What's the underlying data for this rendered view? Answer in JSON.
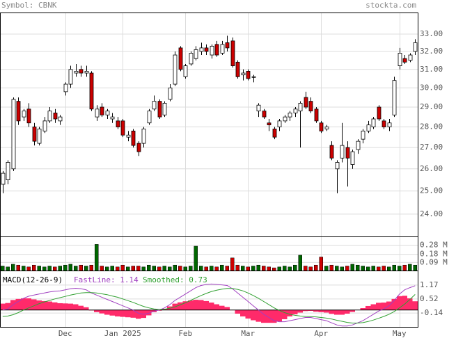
{
  "chart_data": [
    {
      "type": "candlestick",
      "title": "Symbol: CBNK",
      "source": "stockta.com",
      "categories": [
        null,
        null,
        null,
        null,
        null,
        null,
        null,
        null,
        null,
        null,
        null,
        null,
        "Dec",
        null,
        null,
        null,
        null,
        null,
        null,
        null,
        null,
        null,
        null,
        "Jan 2025",
        null,
        null,
        null,
        null,
        null,
        null,
        null,
        null,
        null,
        null,
        null,
        "Feb",
        null,
        null,
        null,
        null,
        null,
        null,
        null,
        null,
        null,
        null,
        null,
        "Mar",
        null,
        null,
        null,
        null,
        null,
        null,
        null,
        null,
        null,
        null,
        null,
        null,
        null,
        "Apr",
        null,
        null,
        null,
        null,
        null,
        null,
        null,
        null,
        null,
        null,
        null,
        null,
        null,
        null,
        "May",
        null,
        null,
        null
      ],
      "ohlc": [
        [
          25.3,
          25.9,
          24.9,
          25.8
        ],
        [
          25.5,
          26.4,
          25.3,
          26.3
        ],
        [
          26.0,
          29.5,
          25.9,
          29.4
        ],
        [
          29.3,
          29.5,
          28.1,
          28.3
        ],
        [
          28.5,
          28.9,
          28.3,
          28.8
        ],
        [
          28.9,
          29.2,
          28.0,
          28.2
        ],
        [
          28.0,
          28.2,
          27.1,
          27.3
        ],
        [
          27.2,
          28.0,
          27.1,
          27.9
        ],
        [
          27.8,
          28.5,
          27.7,
          28.3
        ],
        [
          28.3,
          29.0,
          28.2,
          28.8
        ],
        [
          28.7,
          28.9,
          28.2,
          28.4
        ],
        [
          28.3,
          28.6,
          28.1,
          28.5
        ],
        [
          29.8,
          30.3,
          29.6,
          30.2
        ],
        [
          30.2,
          31.2,
          30.0,
          31.0
        ],
        [
          30.8,
          31.3,
          30.6,
          30.9
        ],
        [
          31.0,
          31.2,
          30.6,
          30.8
        ],
        [
          30.8,
          31.2,
          30.6,
          30.9
        ],
        [
          30.8,
          30.9,
          28.8,
          28.9
        ],
        [
          28.5,
          29.1,
          28.3,
          28.9
        ],
        [
          29.0,
          29.2,
          28.5,
          28.6
        ],
        [
          28.6,
          28.9,
          28.4,
          28.8
        ],
        [
          28.4,
          28.7,
          28.2,
          28.5
        ],
        [
          28.3,
          28.5,
          27.9,
          28.0
        ],
        [
          28.3,
          28.4,
          27.5,
          27.6
        ],
        [
          27.5,
          27.8,
          27.3,
          27.6
        ],
        [
          27.8,
          27.9,
          27.0,
          27.1
        ],
        [
          27.2,
          27.3,
          26.6,
          26.8
        ],
        [
          27.2,
          28.0,
          27.0,
          27.9
        ],
        [
          28.2,
          28.9,
          28.1,
          28.8
        ],
        [
          28.9,
          29.6,
          28.8,
          29.3
        ],
        [
          29.3,
          29.4,
          28.4,
          28.5
        ],
        [
          28.6,
          29.3,
          28.5,
          29.2
        ],
        [
          29.4,
          30.2,
          29.3,
          30.0
        ],
        [
          30.2,
          32.0,
          30.1,
          31.8
        ],
        [
          32.2,
          32.3,
          30.9,
          31.0
        ],
        [
          30.6,
          31.3,
          30.5,
          31.2
        ],
        [
          31.3,
          32.0,
          31.2,
          31.9
        ],
        [
          31.6,
          32.3,
          31.5,
          32.1
        ],
        [
          32.0,
          32.5,
          31.8,
          32.2
        ],
        [
          32.2,
          32.4,
          31.8,
          32.0
        ],
        [
          31.8,
          32.4,
          31.6,
          32.3
        ],
        [
          32.4,
          32.6,
          31.7,
          31.8
        ],
        [
          31.9,
          32.6,
          31.8,
          32.4
        ],
        [
          32.5,
          32.9,
          32.0,
          32.2
        ],
        [
          32.6,
          32.8,
          31.1,
          31.2
        ],
        [
          31.4,
          31.5,
          30.5,
          30.6
        ],
        [
          30.7,
          31.0,
          30.4,
          30.8
        ],
        [
          30.9,
          31.0,
          30.4,
          30.5
        ],
        [
          30.6,
          30.7,
          30.3,
          30.6
        ],
        [
          28.8,
          29.2,
          28.5,
          29.1
        ],
        [
          28.8,
          28.9,
          28.4,
          28.5
        ],
        [
          28.2,
          28.4,
          27.8,
          28.1
        ],
        [
          27.9,
          28.0,
          27.4,
          27.5
        ],
        [
          28.0,
          28.4,
          27.8,
          28.3
        ],
        [
          28.3,
          28.6,
          28.2,
          28.5
        ],
        [
          28.5,
          28.8,
          28.3,
          28.7
        ],
        [
          28.7,
          29.0,
          28.5,
          28.9
        ],
        [
          28.8,
          29.3,
          27.0,
          29.2
        ],
        [
          29.5,
          29.8,
          28.9,
          29.0
        ],
        [
          29.3,
          29.5,
          28.7,
          28.8
        ],
        [
          28.9,
          29.0,
          28.2,
          28.3
        ],
        [
          28.2,
          28.3,
          27.7,
          27.8
        ],
        [
          27.9,
          28.1,
          27.8,
          28.0
        ],
        [
          27.1,
          27.3,
          26.4,
          26.5
        ],
        [
          26.0,
          26.4,
          24.9,
          26.3
        ],
        [
          26.5,
          28.2,
          26.3,
          27.1
        ],
        [
          27.0,
          27.3,
          25.2,
          26.5
        ],
        [
          26.2,
          26.9,
          26.0,
          26.8
        ],
        [
          26.9,
          27.4,
          26.7,
          27.3
        ],
        [
          27.4,
          27.9,
          27.2,
          27.8
        ],
        [
          27.8,
          28.3,
          27.7,
          28.1
        ],
        [
          28.0,
          28.5,
          27.9,
          28.4
        ],
        [
          29.0,
          29.1,
          28.3,
          28.4
        ],
        [
          28.3,
          28.4,
          27.9,
          28.0
        ],
        [
          28.0,
          28.4,
          27.8,
          28.2
        ],
        [
          28.6,
          30.6,
          28.5,
          30.4
        ],
        [
          31.2,
          32.2,
          31.0,
          31.9
        ],
        [
          31.6,
          31.8,
          31.3,
          31.4
        ],
        [
          31.5,
          31.9,
          31.4,
          31.8
        ],
        [
          32.0,
          32.7,
          31.8,
          32.5
        ]
      ],
      "up_color": "#ffffff",
      "down_color": "#cc0000",
      "log_scale": true,
      "grid": true,
      "ylim": [
        23.07,
        34.28
      ],
      "yticks": [
        {
          "value": 24,
          "label": "24.00"
        },
        {
          "value": 25,
          "label": "25.00"
        },
        {
          "value": 26,
          "label": "26.00"
        },
        {
          "value": 27,
          "label": "27.00"
        },
        {
          "value": 28,
          "label": "28.00"
        },
        {
          "value": 29,
          "label": "29.00"
        },
        {
          "value": 30,
          "label": "30.00"
        },
        {
          "value": 31,
          "label": "31.00"
        },
        {
          "value": 32,
          "label": "32.00"
        },
        {
          "value": 33,
          "label": "33.00"
        }
      ]
    },
    {
      "type": "volume",
      "values": [
        0.05,
        0.04,
        0.07,
        0.06,
        0.05,
        0.04,
        0.06,
        0.05,
        0.04,
        0.05,
        0.04,
        0.05,
        0.06,
        0.07,
        0.05,
        0.06,
        0.05,
        0.06,
        0.29,
        0.05,
        0.04,
        0.05,
        0.04,
        0.06,
        0.04,
        0.05,
        0.05,
        0.04,
        0.06,
        0.05,
        0.04,
        0.05,
        0.04,
        0.06,
        0.05,
        0.04,
        0.05,
        0.27,
        0.05,
        0.04,
        0.05,
        0.04,
        0.06,
        0.05,
        0.14,
        0.06,
        0.05,
        0.04,
        0.05,
        0.06,
        0.05,
        0.04,
        0.03,
        0.04,
        0.05,
        0.04,
        0.06,
        0.17,
        0.05,
        0.04,
        0.06,
        0.15,
        0.05,
        0.06,
        0.05,
        0.04,
        0.05,
        0.07,
        0.06,
        0.05,
        0.04,
        0.05,
        0.04,
        0.05,
        0.04,
        0.06,
        0.05,
        0.06,
        0.07,
        0.06
      ],
      "up_color": "#006600",
      "down_color": "#cc0000",
      "grid": true,
      "ylim": [
        0,
        0.37
      ],
      "yticks": [
        {
          "value": 0.09,
          "label": "0.09 M"
        },
        {
          "value": 0.18,
          "label": "0.18 M"
        },
        {
          "value": 0.28,
          "label": "0.28 M"
        }
      ]
    },
    {
      "type": "macd",
      "title": "MACD(12-26-9)",
      "series": [
        {
          "name": "FastLine: 1.14",
          "color": "#a040c0",
          "style": "line",
          "values": [
            0.0,
            0.05,
            0.25,
            0.4,
            0.55,
            0.65,
            0.7,
            0.75,
            0.8,
            0.85,
            0.88,
            0.9,
            0.95,
            1.0,
            1.02,
            1.0,
            0.95,
            0.8,
            0.7,
            0.6,
            0.5,
            0.4,
            0.3,
            0.2,
            0.1,
            0.0,
            -0.15,
            -0.2,
            -0.15,
            -0.05,
            0.0,
            0.1,
            0.25,
            0.45,
            0.6,
            0.75,
            0.9,
            1.05,
            1.15,
            1.2,
            1.22,
            1.2,
            1.18,
            1.15,
            1.0,
            0.8,
            0.6,
            0.4,
            0.2,
            0.0,
            -0.2,
            -0.35,
            -0.5,
            -0.55,
            -0.55,
            -0.5,
            -0.45,
            -0.4,
            -0.35,
            -0.35,
            -0.4,
            -0.45,
            -0.5,
            -0.6,
            -0.7,
            -0.75,
            -0.75,
            -0.7,
            -0.6,
            -0.5,
            -0.35,
            -0.2,
            -0.05,
            0.05,
            0.2,
            0.45,
            0.75,
            0.95,
            1.05,
            1.14
          ]
        },
        {
          "name": "Smoothed: 0.73",
          "color": "#30a030",
          "style": "line",
          "values": [
            -0.3,
            -0.28,
            -0.22,
            -0.12,
            0.0,
            0.1,
            0.2,
            0.3,
            0.38,
            0.45,
            0.52,
            0.58,
            0.64,
            0.7,
            0.75,
            0.8,
            0.82,
            0.82,
            0.8,
            0.76,
            0.72,
            0.66,
            0.6,
            0.52,
            0.44,
            0.36,
            0.26,
            0.17,
            0.1,
            0.05,
            0.03,
            0.04,
            0.08,
            0.15,
            0.24,
            0.34,
            0.45,
            0.57,
            0.68,
            0.78,
            0.87,
            0.93,
            0.98,
            1.01,
            1.01,
            0.97,
            0.9,
            0.8,
            0.68,
            0.55,
            0.4,
            0.25,
            0.1,
            -0.02,
            -0.12,
            -0.2,
            -0.25,
            -0.28,
            -0.3,
            -0.31,
            -0.32,
            -0.35,
            -0.38,
            -0.42,
            -0.48,
            -0.53,
            -0.58,
            -0.61,
            -0.61,
            -0.59,
            -0.54,
            -0.47,
            -0.39,
            -0.3,
            -0.2,
            -0.07,
            0.1,
            0.28,
            0.5,
            0.73
          ]
        },
        {
          "color": "#ff2a6a",
          "style": "bar",
          "values": [
            0.3,
            0.33,
            0.47,
            0.52,
            0.55,
            0.55,
            0.5,
            0.45,
            0.42,
            0.4,
            0.36,
            0.32,
            0.31,
            0.3,
            0.27,
            0.2,
            0.13,
            -0.02,
            -0.1,
            -0.16,
            -0.22,
            -0.26,
            -0.3,
            -0.32,
            -0.34,
            -0.36,
            -0.41,
            -0.37,
            -0.25,
            -0.1,
            -0.03,
            0.06,
            0.17,
            0.3,
            0.36,
            0.41,
            0.45,
            0.48,
            0.47,
            0.42,
            0.35,
            0.27,
            0.2,
            0.14,
            -0.01,
            -0.17,
            -0.3,
            -0.4,
            -0.48,
            -0.55,
            -0.6,
            -0.6,
            -0.6,
            -0.53,
            -0.43,
            -0.3,
            -0.2,
            -0.12,
            -0.05,
            -0.04,
            -0.08,
            -0.1,
            -0.12,
            -0.18,
            -0.22,
            -0.22,
            -0.17,
            -0.09,
            0.01,
            0.09,
            0.19,
            0.27,
            0.34,
            0.35,
            0.4,
            0.52,
            0.65,
            0.67,
            0.55,
            0.41
          ]
        }
      ],
      "ylim": [
        -0.79,
        1.82
      ],
      "yticks": [
        -0.14,
        0.52,
        1.17
      ]
    }
  ]
}
